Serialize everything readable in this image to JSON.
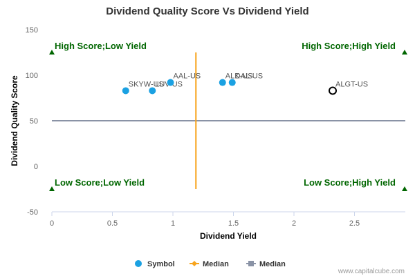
{
  "chart_data": {
    "type": "scatter",
    "title": "Dividend Quality Score Vs Dividend Yield",
    "xlabel": "Dividend Yield",
    "ylabel": "Dividend Quality Score",
    "xlim": [
      0,
      2.92
    ],
    "ylim": [
      -50,
      150
    ],
    "x_ticks": [
      "0",
      "0.5",
      "1",
      "1.5",
      "2",
      "2.5"
    ],
    "y_ticks": [
      "150",
      "100",
      "50",
      "0",
      "-50"
    ],
    "grid": false,
    "points": [
      {
        "label": "SKYW-US",
        "x": 0.61,
        "y": 83,
        "style": "filled"
      },
      {
        "label": "LUV-US",
        "x": 0.83,
        "y": 83,
        "style": "filled"
      },
      {
        "label": "AAL-US",
        "x": 0.98,
        "y": 92,
        "style": "filled"
      },
      {
        "label": "ALK-US",
        "x": 1.41,
        "y": 92,
        "style": "filled"
      },
      {
        "label": "DAL-US",
        "x": 1.49,
        "y": 92,
        "style": "filled"
      },
      {
        "label": "ALGT-US",
        "x": 2.32,
        "y": 83,
        "style": "hollow"
      }
    ],
    "median_x": 1.19,
    "median_y": 50,
    "quadrants": [
      {
        "label": "High Score;Low Yield",
        "corner": "top-left"
      },
      {
        "label": "High Score;High Yield",
        "corner": "top-right"
      },
      {
        "label": "Low Score;Low Yield",
        "corner": "bottom-left"
      },
      {
        "label": "Low Score;High Yield",
        "corner": "bottom-right"
      }
    ],
    "legend": {
      "placement": "bottom",
      "items": [
        {
          "label": "Symbol",
          "color": "#1ba1e2"
        },
        {
          "label": "Median",
          "color": "#f7a41d"
        },
        {
          "label": "Median",
          "color": "#8a93a6"
        }
      ]
    },
    "colors": {
      "point": "#1ba1e2",
      "median_x": "#f7a41d",
      "median_y": "#8a93a6",
      "quadrant": "#006600"
    },
    "credit": "www.capitalcube.com"
  }
}
